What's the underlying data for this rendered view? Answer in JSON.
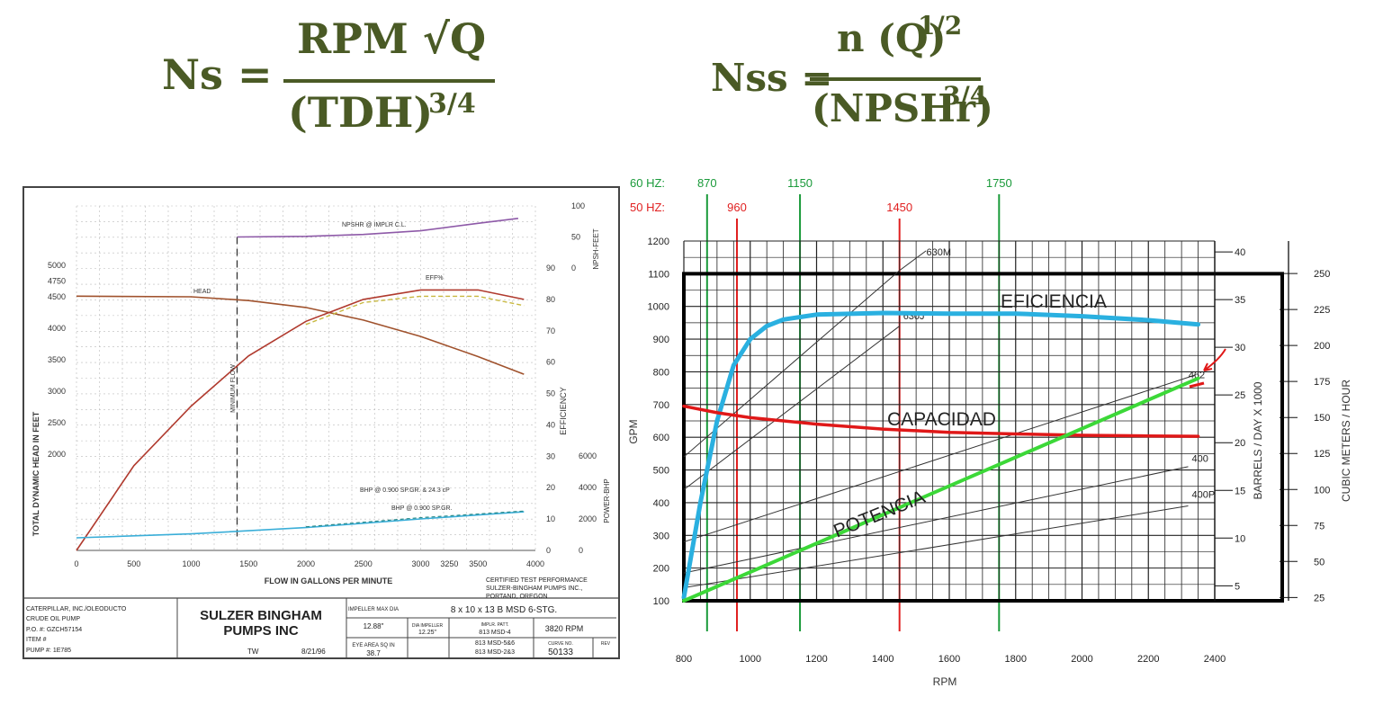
{
  "formulas": {
    "ns": {
      "lhs": "Ns =",
      "numerator": "RPM √Q",
      "denominator": "(TDH)",
      "exponent": "3/4"
    },
    "nss": {
      "lhs": "Nss =",
      "numerator": "n (Q)",
      "num_exponent": "1/2",
      "denominator": "(NPSHr)",
      "exponent": "3/4"
    },
    "color": "#4a5a25"
  },
  "chart_data": [
    {
      "type": "line",
      "title": "",
      "xlabel": "FLOW IN GALLONS PER MINUTE",
      "ylabel": "TOTAL DYNAMIC HEAD IN FEET",
      "xlim": [
        0,
        4000
      ],
      "x_ticks": [
        "0",
        "500",
        "1000",
        "1500",
        "2000",
        "2500",
        "3000",
        "3250",
        "3500",
        "4000"
      ],
      "y_ticks": [
        "2000",
        "2500",
        "3000",
        "3500",
        "4000",
        "4500",
        "4750",
        "5000"
      ],
      "right_axes": [
        {
          "label": "EFFICIENCY",
          "ticks": [
            "0",
            "10",
            "20",
            "30",
            "40",
            "50",
            "60",
            "70",
            "80",
            "90"
          ]
        },
        {
          "label": "NPSH-FEET",
          "ticks": [
            "0",
            "50",
            "100"
          ]
        },
        {
          "label": "POWER-BHP",
          "ticks": [
            "0",
            "2000",
            "4000",
            "6000"
          ]
        }
      ],
      "annotations": [
        "MINIMUM FLOW",
        "NPSHR @ IMPLR C.L.",
        "HEAD",
        "EFF%",
        "BHP @ 0.900  SP.GR. & 24.3 cP",
        "BHP @ 0.900  SP.GR."
      ],
      "series": [
        {
          "name": "HEAD",
          "color": "#a0522d",
          "x": [
            0,
            1000,
            1500,
            2000,
            2500,
            3000,
            3500,
            3900
          ],
          "y": [
            4510,
            4500,
            4440,
            4330,
            4130,
            3870,
            3550,
            3270
          ]
        },
        {
          "name": "EFF%",
          "color": "#b03a2e",
          "x": [
            0,
            500,
            1000,
            1500,
            2000,
            2500,
            3000,
            3500,
            3900
          ],
          "y": [
            0,
            27,
            46,
            62,
            73,
            80,
            83,
            83,
            80
          ]
        },
        {
          "name": "NPSHR @ IMPLR C.L.",
          "color": "#8e5aa8",
          "x": [
            1400,
            2000,
            2500,
            3000,
            3500,
            3850
          ],
          "y": [
            50,
            51,
            54,
            60,
            72,
            80
          ]
        },
        {
          "name": "BHP @ 0.900  SP.GR.",
          "color": "#3aaed8",
          "x": [
            0,
            1000,
            2000,
            3000,
            3900
          ],
          "y": [
            800,
            1050,
            1450,
            2000,
            2450
          ]
        }
      ],
      "info_block": {
        "customer": [
          "CATERPILLAR, INC./OLEODUCTO",
          "CRUDE OIL PUMP",
          "P.O. #: GZCH57154",
          "ITEM #",
          "PUMP #:  1E785"
        ],
        "company": "SULZER BINGHAM PUMPS INC",
        "tw": "TW",
        "date": "8/21/96",
        "impeller_label": "IMPELLER MAX DIA",
        "impeller_value": "12.88\"",
        "eye_label": "EYE AREA SQ IN",
        "eye_value": "38.7",
        "dia_label": "DIA IMPELLER",
        "dia_value": "12.25\"",
        "model": "8 x 10 x 13 B MSD  6-STG.",
        "patt_label": "IMPLR. PATT.",
        "patt_values": [
          "813 MSD-4",
          "813 MSD-5&6",
          "813 MSD-2&3"
        ],
        "rpm": "3820  RPM",
        "curve_label": "CURVE NO.",
        "curve_no": "50133",
        "rev_label": "REV",
        "certified": [
          "CERTIFIED TEST PERFORMANCE",
          "SULZER-BINGHAM PUMPS INC.,",
          "PORTAND, OREGON"
        ]
      }
    },
    {
      "type": "line",
      "title": "",
      "xlabel": "RPM",
      "ylabel": "GPM",
      "xlim": [
        800,
        2400
      ],
      "ylim": [
        100,
        1200
      ],
      "x_ticks": [
        800,
        1000,
        1200,
        1400,
        1600,
        1800,
        2000,
        2200,
        2400
      ],
      "y_ticks": [
        100,
        200,
        300,
        400,
        500,
        600,
        700,
        800,
        900,
        1000,
        1100,
        1200
      ],
      "right_axes": [
        {
          "label": "BARRELS / DAY X 1000",
          "ticks": [
            "5",
            "10",
            "15",
            "20",
            "25",
            "30",
            "35",
            "40"
          ]
        },
        {
          "label": "CUBIC METERS / HOUR",
          "ticks": [
            "25",
            "50",
            "75",
            "100",
            "125",
            "150",
            "175",
            "200",
            "225",
            "250"
          ]
        }
      ],
      "hz_rows": [
        {
          "label": "60 HZ:",
          "color": "#1a9a3a",
          "rpms": [
            870,
            1150,
            1750
          ]
        },
        {
          "label": "50 HZ:",
          "color": "#e02020",
          "rpms": [
            960,
            1450
          ]
        }
      ],
      "model_lines": [
        "630M",
        "630J",
        "462",
        "400",
        "400P"
      ],
      "series": [
        {
          "name": "EFICIENCIA",
          "color": "#2ab0e0",
          "x": [
            800,
            850,
            900,
            950,
            1000,
            1050,
            1100,
            1200,
            1400,
            1600,
            1800,
            2000,
            2200,
            2350
          ],
          "y": [
            110,
            400,
            650,
            820,
            900,
            940,
            960,
            975,
            980,
            978,
            978,
            970,
            958,
            945
          ]
        },
        {
          "name": "CAPACIDAD",
          "color": "#e01818",
          "x": [
            800,
            900,
            1000,
            1200,
            1400,
            1600,
            1800,
            2000,
            2200,
            2350
          ],
          "y": [
            695,
            675,
            660,
            640,
            625,
            615,
            610,
            606,
            604,
            603
          ]
        },
        {
          "name": "POTENCIA",
          "color": "#3cd838",
          "x": [
            800,
            2350
          ],
          "y": [
            100,
            780
          ]
        }
      ]
    }
  ]
}
